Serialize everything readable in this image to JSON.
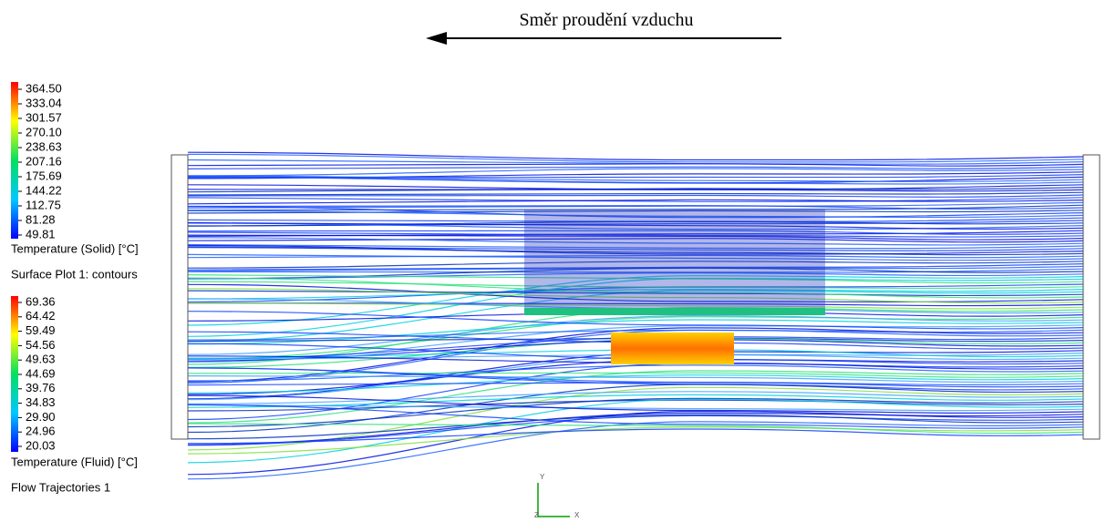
{
  "title": "Směr proudění vzduchu",
  "solid_legend": {
    "values": [
      "364.50",
      "333.04",
      "301.57",
      "270.10",
      "238.63",
      "207.16",
      "175.69",
      "144.22",
      "112.75",
      "81.28",
      "49.81"
    ],
    "label": "Temperature (Solid) [°C]",
    "plot_name": "Surface Plot 1: contours"
  },
  "fluid_legend": {
    "values": [
      "69.36",
      "64.42",
      "59.49",
      "54.56",
      "49.63",
      "44.69",
      "39.76",
      "34.83",
      "29.90",
      "24.96",
      "20.03"
    ],
    "label": "Temperature (Fluid) [°C]",
    "plot_name": "Flow Trajectories 1"
  },
  "axes": {
    "y": "Y",
    "x": "X",
    "z": "Z"
  }
}
